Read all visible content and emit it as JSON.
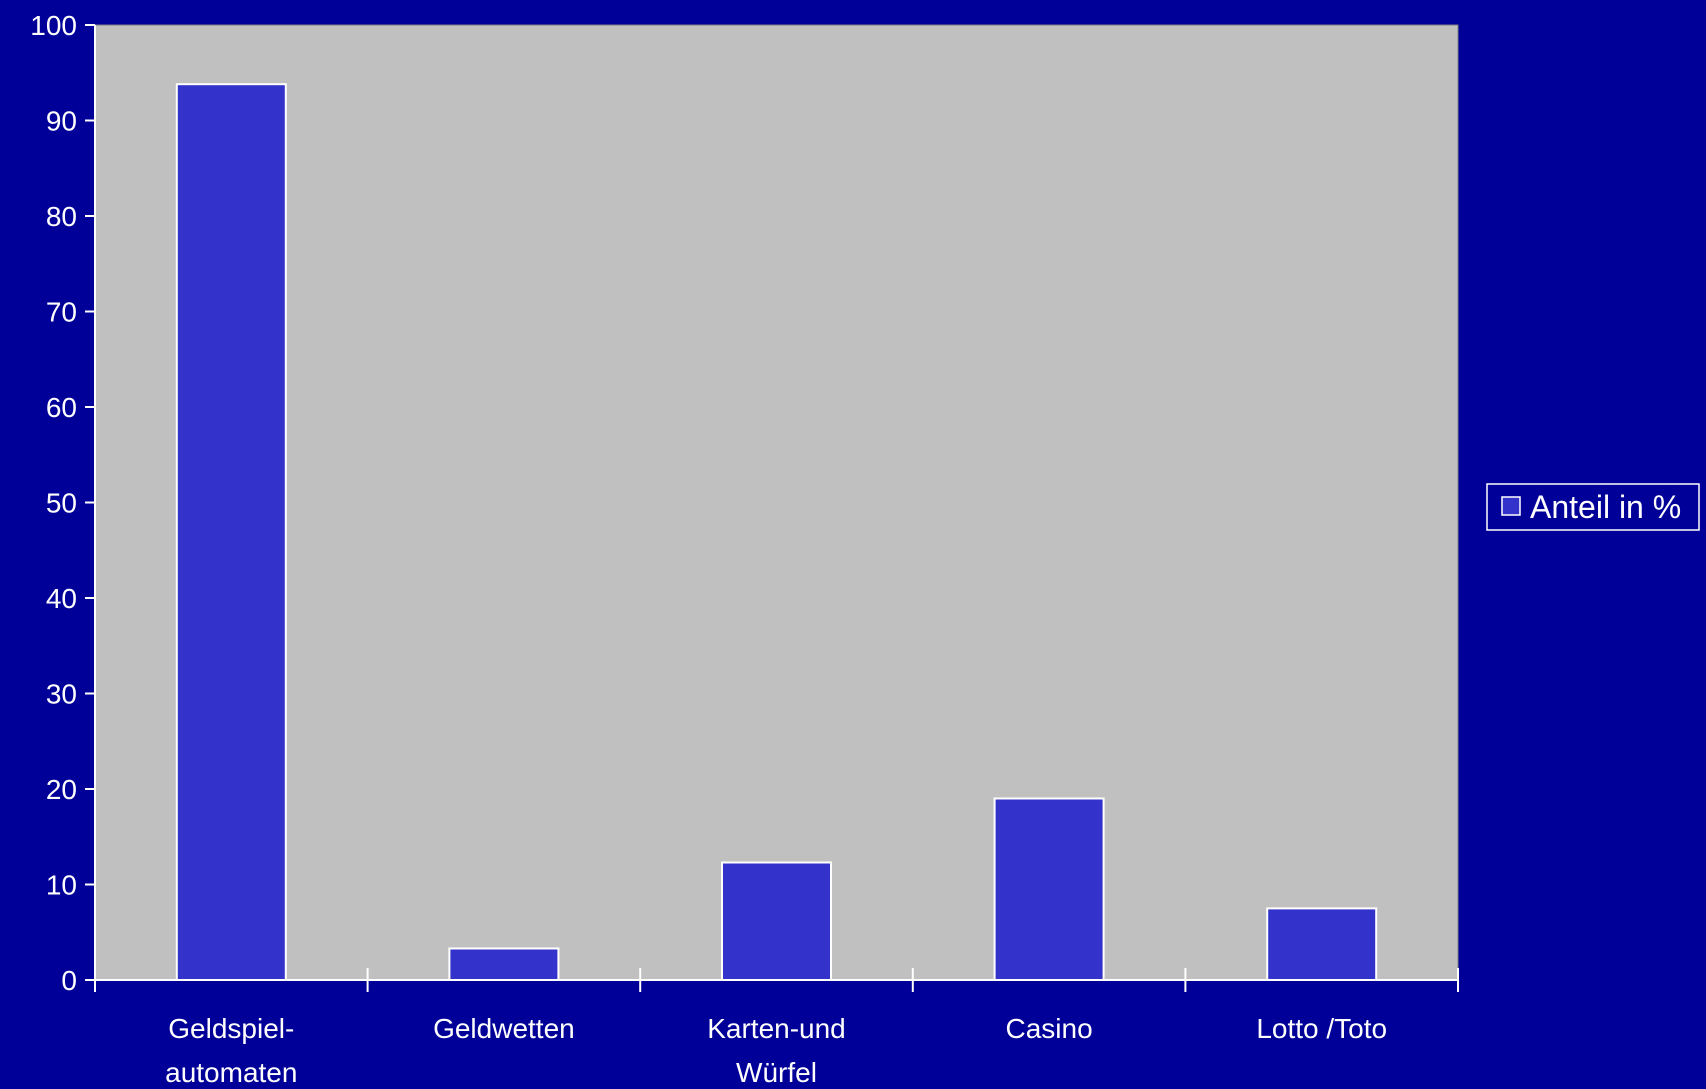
{
  "colors": {
    "background": "#000099",
    "plot_area": "#c0c0c0",
    "bar_fill": "#3333cc",
    "bar_stroke": "#ffffff",
    "axis": "#ffffff",
    "text": "#ffffff"
  },
  "chart_data": {
    "type": "bar",
    "title": "",
    "xlabel": "",
    "ylabel": "",
    "categories": [
      [
        "Geldspiel-",
        "automaten"
      ],
      [
        "Geldwetten"
      ],
      [
        "Karten-und",
        "Würfel"
      ],
      [
        "Casino"
      ],
      [
        "Lotto /Toto"
      ]
    ],
    "series": [
      {
        "name": "Anteil in %",
        "values": [
          93.8,
          3.3,
          12.3,
          19.0,
          7.5
        ]
      }
    ],
    "ylim": [
      0,
      100
    ],
    "yticks": [
      0,
      10,
      20,
      30,
      40,
      50,
      60,
      70,
      80,
      90,
      100
    ],
    "grid": false,
    "legend_position": "right"
  }
}
